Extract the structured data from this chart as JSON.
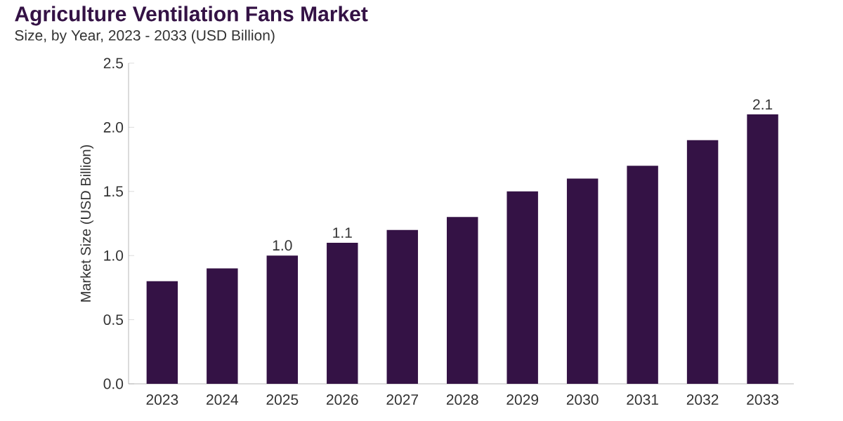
{
  "chart_data": {
    "type": "bar",
    "title": "Agriculture Ventilation Fans Market",
    "subtitle": "Size, by Year, 2023 - 2033 (USD Billion)",
    "ylabel": "Market Size (USD Billion)",
    "categories": [
      "2023",
      "2024",
      "2025",
      "2026",
      "2027",
      "2028",
      "2029",
      "2030",
      "2031",
      "2032",
      "2033"
    ],
    "values": [
      0.8,
      0.9,
      1.0,
      1.1,
      1.2,
      1.3,
      1.5,
      1.6,
      1.7,
      1.9,
      2.1
    ],
    "value_labels": [
      null,
      null,
      "1.0",
      "1.1",
      null,
      null,
      null,
      null,
      null,
      null,
      "2.1"
    ],
    "color": "#341245",
    "ylim": [
      0,
      2.5
    ],
    "yticks": [
      {
        "value": 0,
        "label": "0.0"
      },
      {
        "value": 0.5,
        "label": "0.5"
      },
      {
        "value": 1,
        "label": "1.0"
      },
      {
        "value": 1.5,
        "label": "1.5"
      },
      {
        "value": 2,
        "label": "2.0"
      },
      {
        "value": 2.5,
        "label": "2.5"
      }
    ],
    "grid": false
  }
}
